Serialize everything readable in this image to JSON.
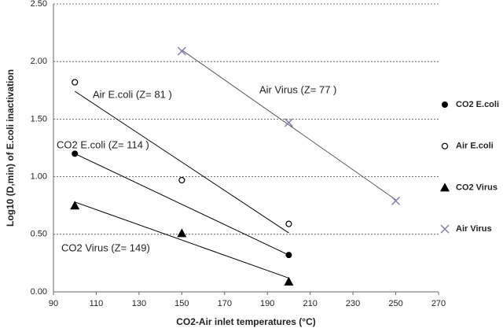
{
  "chart_data": {
    "type": "scatter",
    "x_label": "CO2-Air inlet temperatures (°C)",
    "y_label": "Log10 (D,min) of E.coli inactivation",
    "xlim": [
      90,
      270
    ],
    "xticks": [
      90,
      110,
      130,
      150,
      170,
      190,
      210,
      230,
      250,
      270
    ],
    "ylim": [
      0,
      2.5
    ],
    "yticks": [
      {
        "value": 0,
        "label": "0.00"
      },
      {
        "value": 0.5,
        "label": "0.50"
      },
      {
        "value": 1,
        "label": "1.00"
      },
      {
        "value": 1.5,
        "label": "1.50"
      },
      {
        "value": 2,
        "label": "2.00"
      },
      {
        "value": 2.5,
        "label": "2.50"
      }
    ],
    "grid": true,
    "trendline": true,
    "legend": "right",
    "series": [
      {
        "name": "CO2 E.coli",
        "marker": "filled-circle",
        "color": "#000000",
        "x": [
          100,
          200
        ],
        "values": [
          1.2,
          0.32
        ]
      },
      {
        "name": "Air E.coli",
        "marker": "open-circle",
        "color": "#000000",
        "x": [
          100,
          150,
          200
        ],
        "values": [
          1.82,
          0.97,
          0.59
        ]
      },
      {
        "name": "CO2 Virus",
        "marker": "triangle",
        "color": "#000000",
        "x": [
          100,
          150,
          200
        ],
        "values": [
          0.75,
          0.51,
          0.09
        ]
      },
      {
        "name": "Air Virus",
        "marker": "cross",
        "color": "#8080a8",
        "x": [
          150,
          200,
          250
        ],
        "values": [
          2.09,
          1.47,
          0.79
        ]
      }
    ],
    "annotations": [
      "CO2 E.coli (Z= 114 )",
      "Air E.coli (Z= 81 )",
      "CO2 Virus (Z= 149)",
      "Air Virus (Z= 77 )"
    ]
  }
}
